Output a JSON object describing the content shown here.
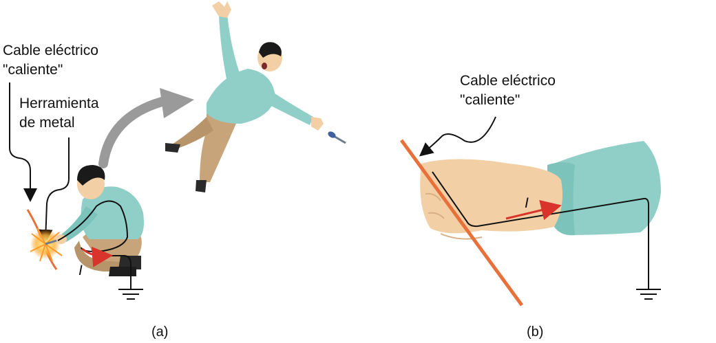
{
  "panel_a": {
    "label_hot_wire_line1": "Cable eléctrico",
    "label_hot_wire_line2": "\"caliente\"",
    "label_tool_line1": "Herramienta",
    "label_tool_line2": "de metal",
    "current_label": "I",
    "caption": "(a)"
  },
  "panel_b": {
    "label_hot_wire_line1": "Cable eléctrico",
    "label_hot_wire_line2": "\"caliente\"",
    "current_label": "I",
    "caption": "(b)"
  },
  "colors": {
    "shirt": "#8fcfc8",
    "shirt_dark": "#6fb3ac",
    "pants": "#c8a47a",
    "skin": "#f2cfa4",
    "hair": "#1a1a1a",
    "wire": "#e8703a",
    "current_arrow": "#d9342b",
    "big_arrow": "#9a9a9a",
    "lines": "#111111"
  }
}
